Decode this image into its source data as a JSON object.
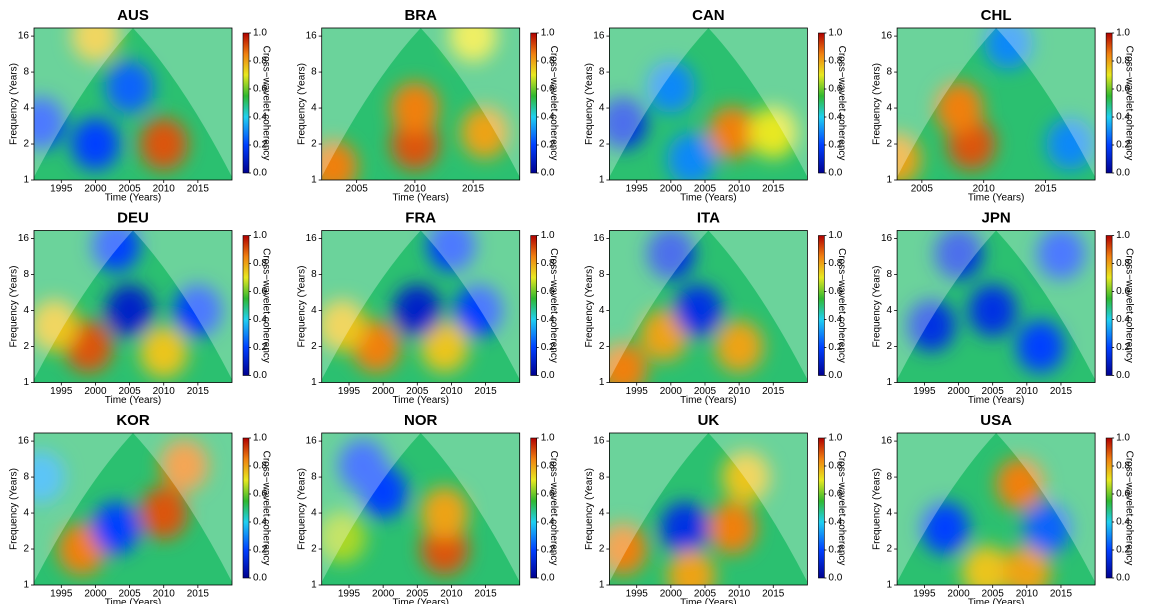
{
  "chart_data": [
    {
      "type": "wavelet",
      "title": "AUS",
      "xlabel": "Time (Years)",
      "ylabel": "Frequency (Years)",
      "colorbar_label": "Cross−wavelet coherency",
      "xlim": [
        1991,
        2020
      ],
      "xticks": [
        1995,
        2000,
        2005,
        2010,
        2015
      ],
      "ylim": [
        1,
        18.7
      ],
      "yticks": [
        1,
        2,
        4,
        8,
        16
      ],
      "log_scale": true,
      "clim": [
        0,
        1
      ],
      "cticks": [
        {
          "value": 0,
          "label": "0.0"
        },
        {
          "value": 0.2,
          "label": "0.2"
        },
        {
          "value": 0.4,
          "label": "0.4"
        },
        {
          "value": 0.6,
          "label": "0.6"
        },
        {
          "value": 0.8,
          "label": "0.8"
        },
        {
          "value": 1,
          "label": "1.0"
        }
      ],
      "regions": [
        {
          "x": 2010,
          "y": 2,
          "value": 0.9
        },
        {
          "x": 1992,
          "y": 3,
          "value": 0.2
        },
        {
          "x": 2000,
          "y": 2,
          "value": 0.2
        },
        {
          "x": 2000,
          "y": 16,
          "value": 0.75
        },
        {
          "x": 2005,
          "y": 6,
          "value": 0.25
        }
      ]
    },
    {
      "type": "wavelet",
      "title": "BRA",
      "xlabel": "Time (Years)",
      "ylabel": "Frequency (Years)",
      "colorbar_label": "Cross−wavelet coherency",
      "xlim": [
        2002,
        2019
      ],
      "xticks": [
        2005,
        2010,
        2015
      ],
      "ylim": [
        1,
        18.7
      ],
      "yticks": [
        1,
        2,
        4,
        8,
        16
      ],
      "log_scale": true,
      "clim": [
        0,
        1
      ],
      "cticks": [
        {
          "value": 0,
          "label": "0.0"
        },
        {
          "value": 0.2,
          "label": "0.2"
        },
        {
          "value": 0.4,
          "label": "0.4"
        },
        {
          "value": 0.6,
          "label": "0.6"
        },
        {
          "value": 0.8,
          "label": "0.8"
        },
        {
          "value": 1,
          "label": "1.0"
        }
      ],
      "regions": [
        {
          "x": 2010,
          "y": 2,
          "value": 0.9
        },
        {
          "x": 2010,
          "y": 4,
          "value": 0.85
        },
        {
          "x": 2016,
          "y": 2.5,
          "value": 0.8
        },
        {
          "x": 2003,
          "y": 1.3,
          "value": 0.85
        },
        {
          "x": 2015,
          "y": 16,
          "value": 0.7
        }
      ]
    },
    {
      "type": "wavelet",
      "title": "CAN",
      "xlabel": "Time (Years)",
      "ylabel": "Frequency (Years)",
      "colorbar_label": "Cross−wavelet coherency",
      "xlim": [
        1991,
        2020
      ],
      "xticks": [
        1995,
        2000,
        2005,
        2010,
        2015
      ],
      "ylim": [
        1,
        18.7
      ],
      "yticks": [
        1,
        2,
        4,
        8,
        16
      ],
      "log_scale": true,
      "clim": [
        0,
        1
      ],
      "cticks": [
        {
          "value": 0,
          "label": "0.0"
        },
        {
          "value": 0.2,
          "label": "0.2"
        },
        {
          "value": 0.4,
          "label": "0.4"
        },
        {
          "value": 0.6,
          "label": "0.6"
        },
        {
          "value": 0.8,
          "label": "0.8"
        },
        {
          "value": 1,
          "label": "1.0"
        }
      ],
      "regions": [
        {
          "x": 1993,
          "y": 3,
          "value": 0.15
        },
        {
          "x": 2009,
          "y": 2.5,
          "value": 0.85
        },
        {
          "x": 2015,
          "y": 2.5,
          "value": 0.7
        },
        {
          "x": 2000,
          "y": 6,
          "value": 0.3
        },
        {
          "x": 2003,
          "y": 1.5,
          "value": 0.3
        }
      ]
    },
    {
      "type": "wavelet",
      "title": "CHL",
      "xlabel": "Time (Years)",
      "ylabel": "Frequency (Years)",
      "colorbar_label": "Cross−wavelet coherency",
      "xlim": [
        2003,
        2019
      ],
      "xticks": [
        2005,
        2010,
        2015
      ],
      "ylim": [
        1,
        18.7
      ],
      "yticks": [
        1,
        2,
        4,
        8,
        16
      ],
      "log_scale": true,
      "clim": [
        0,
        1
      ],
      "cticks": [
        {
          "value": 0,
          "label": "0.0"
        },
        {
          "value": 0.2,
          "label": "0.2"
        },
        {
          "value": 0.4,
          "label": "0.4"
        },
        {
          "value": 0.6,
          "label": "0.6"
        },
        {
          "value": 0.8,
          "label": "0.8"
        },
        {
          "value": 1,
          "label": "1.0"
        }
      ],
      "regions": [
        {
          "x": 2009,
          "y": 2,
          "value": 0.9
        },
        {
          "x": 2008,
          "y": 4,
          "value": 0.85
        },
        {
          "x": 2017,
          "y": 2,
          "value": 0.3
        },
        {
          "x": 2003,
          "y": 1.5,
          "value": 0.8
        },
        {
          "x": 2012,
          "y": 14,
          "value": 0.3
        }
      ]
    },
    {
      "type": "wavelet",
      "title": "DEU",
      "xlabel": "Time (Years)",
      "ylabel": "Frequency (Years)",
      "colorbar_label": "Cross−wavelet coherency",
      "xlim": [
        1991,
        2020
      ],
      "xticks": [
        1995,
        2000,
        2005,
        2010,
        2015
      ],
      "ylim": [
        1,
        18.7
      ],
      "yticks": [
        1,
        2,
        4,
        8,
        16
      ],
      "log_scale": true,
      "clim": [
        0,
        1
      ],
      "cticks": [
        {
          "value": 0,
          "label": "0.0"
        },
        {
          "value": 0.2,
          "label": "0.2"
        },
        {
          "value": 0.4,
          "label": "0.4"
        },
        {
          "value": 0.6,
          "label": "0.6"
        },
        {
          "value": 0.8,
          "label": "0.8"
        },
        {
          "value": 1,
          "label": "1.0"
        }
      ],
      "regions": [
        {
          "x": 1999,
          "y": 2,
          "value": 0.9
        },
        {
          "x": 1994,
          "y": 3,
          "value": 0.75
        },
        {
          "x": 2010,
          "y": 1.8,
          "value": 0.75
        },
        {
          "x": 2005,
          "y": 4,
          "value": 0.1
        },
        {
          "x": 2015,
          "y": 4,
          "value": 0.2
        },
        {
          "x": 2003,
          "y": 14,
          "value": 0.2
        }
      ]
    },
    {
      "type": "wavelet",
      "title": "FRA",
      "xlabel": "Time (Years)",
      "ylabel": "Frequency (Years)",
      "colorbar_label": "Cross−wavelet coherency",
      "xlim": [
        1991,
        2020
      ],
      "xticks": [
        1995,
        2000,
        2005,
        2010,
        2015
      ],
      "ylim": [
        1,
        18.7
      ],
      "yticks": [
        1,
        2,
        4,
        8,
        16
      ],
      "log_scale": true,
      "clim": [
        0,
        1
      ],
      "cticks": [
        {
          "value": 0,
          "label": "0.0"
        },
        {
          "value": 0.2,
          "label": "0.2"
        },
        {
          "value": 0.4,
          "label": "0.4"
        },
        {
          "value": 0.6,
          "label": "0.6"
        },
        {
          "value": 0.8,
          "label": "0.8"
        },
        {
          "value": 1,
          "label": "1.0"
        }
      ],
      "regions": [
        {
          "x": 1999,
          "y": 2,
          "value": 0.85
        },
        {
          "x": 1994,
          "y": 3,
          "value": 0.75
        },
        {
          "x": 2009,
          "y": 2,
          "value": 0.75
        },
        {
          "x": 2005,
          "y": 4,
          "value": 0.1
        },
        {
          "x": 2014,
          "y": 4,
          "value": 0.2
        },
        {
          "x": 2010,
          "y": 14,
          "value": 0.2
        }
      ]
    },
    {
      "type": "wavelet",
      "title": "ITA",
      "xlabel": "Time (Years)",
      "ylabel": "Frequency (Years)",
      "colorbar_label": "Cross−wavelet coherency",
      "xlim": [
        1991,
        2020
      ],
      "xticks": [
        1995,
        2000,
        2005,
        2010,
        2015
      ],
      "ylim": [
        1,
        18.7
      ],
      "yticks": [
        1,
        2,
        4,
        8,
        16
      ],
      "log_scale": true,
      "clim": [
        0,
        1
      ],
      "cticks": [
        {
          "value": 0,
          "label": "0.0"
        },
        {
          "value": 0.2,
          "label": "0.2"
        },
        {
          "value": 0.4,
          "label": "0.4"
        },
        {
          "value": 0.6,
          "label": "0.6"
        },
        {
          "value": 0.8,
          "label": "0.8"
        },
        {
          "value": 1,
          "label": "1.0"
        }
      ],
      "regions": [
        {
          "x": 1999,
          "y": 2.5,
          "value": 0.8
        },
        {
          "x": 2010,
          "y": 2,
          "value": 0.8
        },
        {
          "x": 1993,
          "y": 1.3,
          "value": 0.85
        },
        {
          "x": 2004,
          "y": 4,
          "value": 0.15
        },
        {
          "x": 2000,
          "y": 12,
          "value": 0.15
        }
      ]
    },
    {
      "type": "wavelet",
      "title": "JPN",
      "xlabel": "Time (Years)",
      "ylabel": "Frequency (Years)",
      "colorbar_label": "Cross−wavelet coherency",
      "xlim": [
        1991,
        2020
      ],
      "xticks": [
        1995,
        2000,
        2005,
        2010,
        2015
      ],
      "ylim": [
        1,
        18.7
      ],
      "yticks": [
        1,
        2,
        4,
        8,
        16
      ],
      "log_scale": true,
      "clim": [
        0,
        1
      ],
      "cticks": [
        {
          "value": 0,
          "label": "0.0"
        },
        {
          "value": 0.2,
          "label": "0.2"
        },
        {
          "value": 0.4,
          "label": "0.4"
        },
        {
          "value": 0.6,
          "label": "0.6"
        },
        {
          "value": 0.8,
          "label": "0.8"
        },
        {
          "value": 1,
          "label": "1.0"
        }
      ],
      "regions": [
        {
          "x": 1996,
          "y": 3,
          "value": 0.15
        },
        {
          "x": 2005,
          "y": 4,
          "value": 0.15
        },
        {
          "x": 2012,
          "y": 2,
          "value": 0.2
        },
        {
          "x": 2000,
          "y": 12,
          "value": 0.15
        },
        {
          "x": 2015,
          "y": 12,
          "value": 0.2
        }
      ]
    },
    {
      "type": "wavelet",
      "title": "KOR",
      "xlabel": "Time (Years)",
      "ylabel": "Frequency (Years)",
      "colorbar_label": "Cross−wavelet coherency",
      "xlim": [
        1991,
        2020
      ],
      "xticks": [
        1995,
        2000,
        2005,
        2010,
        2015
      ],
      "ylim": [
        1,
        18.7
      ],
      "yticks": [
        1,
        2,
        4,
        8,
        16
      ],
      "log_scale": true,
      "clim": [
        0,
        1
      ],
      "cticks": [
        {
          "value": 0,
          "label": "0.0"
        },
        {
          "value": 0.2,
          "label": "0.2"
        },
        {
          "value": 0.4,
          "label": "0.4"
        },
        {
          "value": 0.6,
          "label": "0.6"
        },
        {
          "value": 0.8,
          "label": "0.8"
        },
        {
          "value": 1,
          "label": "1.0"
        }
      ],
      "regions": [
        {
          "x": 2010,
          "y": 4,
          "value": 0.9
        },
        {
          "x": 2013,
          "y": 10,
          "value": 0.85
        },
        {
          "x": 1998,
          "y": 2,
          "value": 0.85
        },
        {
          "x": 2003,
          "y": 3,
          "value": 0.2
        },
        {
          "x": 1992,
          "y": 8,
          "value": 0.35
        }
      ]
    },
    {
      "type": "wavelet",
      "title": "NOR",
      "xlabel": "Time (Years)",
      "ylabel": "Frequency (Years)",
      "colorbar_label": "Cross−wavelet coherency",
      "xlim": [
        1991,
        2020
      ],
      "xticks": [
        1995,
        2000,
        2005,
        2010,
        2015
      ],
      "ylim": [
        1,
        18.7
      ],
      "yticks": [
        1,
        2,
        4,
        8,
        16
      ],
      "log_scale": true,
      "clim": [
        0,
        1
      ],
      "cticks": [
        {
          "value": 0,
          "label": "0.0"
        },
        {
          "value": 0.2,
          "label": "0.2"
        },
        {
          "value": 0.4,
          "label": "0.4"
        },
        {
          "value": 0.6,
          "label": "0.6"
        },
        {
          "value": 0.8,
          "label": "0.8"
        },
        {
          "value": 1,
          "label": "1.0"
        }
      ],
      "regions": [
        {
          "x": 2009,
          "y": 2,
          "value": 0.9
        },
        {
          "x": 2009,
          "y": 4,
          "value": 0.8
        },
        {
          "x": 1994,
          "y": 2.5,
          "value": 0.65
        },
        {
          "x": 2000,
          "y": 6,
          "value": 0.2
        },
        {
          "x": 1997,
          "y": 10,
          "value": 0.2
        }
      ]
    },
    {
      "type": "wavelet",
      "title": "UK",
      "xlabel": "Time (Years)",
      "ylabel": "Frequency (Years)",
      "colorbar_label": "Cross−wavelet coherency",
      "xlim": [
        1991,
        2020
      ],
      "xticks": [
        1995,
        2000,
        2005,
        2010,
        2015
      ],
      "ylim": [
        1,
        18.7
      ],
      "yticks": [
        1,
        2,
        4,
        8,
        16
      ],
      "log_scale": true,
      "clim": [
        0,
        1
      ],
      "cticks": [
        {
          "value": 0,
          "label": "0.0"
        },
        {
          "value": 0.2,
          "label": "0.2"
        },
        {
          "value": 0.4,
          "label": "0.4"
        },
        {
          "value": 0.6,
          "label": "0.6"
        },
        {
          "value": 0.8,
          "label": "0.8"
        },
        {
          "value": 1,
          "label": "1.0"
        }
      ],
      "regions": [
        {
          "x": 2009,
          "y": 3,
          "value": 0.85
        },
        {
          "x": 2011,
          "y": 8,
          "value": 0.75
        },
        {
          "x": 1993,
          "y": 2,
          "value": 0.85
        },
        {
          "x": 2002,
          "y": 3,
          "value": 0.15
        },
        {
          "x": 2003,
          "y": 1.2,
          "value": 0.8
        }
      ]
    },
    {
      "type": "wavelet",
      "title": "USA",
      "xlabel": "Time (Years)",
      "ylabel": "Frequency (Years)",
      "colorbar_label": "Cross−wavelet coherency",
      "xlim": [
        1991,
        2020
      ],
      "xticks": [
        1995,
        2000,
        2005,
        2010,
        2015
      ],
      "ylim": [
        1,
        18.7
      ],
      "yticks": [
        1,
        2,
        4,
        8,
        16
      ],
      "log_scale": true,
      "clim": [
        0,
        1
      ],
      "cticks": [
        {
          "value": 0,
          "label": "0.0"
        },
        {
          "value": 0.2,
          "label": "0.2"
        },
        {
          "value": 0.4,
          "label": "0.4"
        },
        {
          "value": 0.6,
          "label": "0.6"
        },
        {
          "value": 0.8,
          "label": "0.8"
        },
        {
          "value": 1,
          "label": "1.0"
        }
      ],
      "regions": [
        {
          "x": 2009,
          "y": 7,
          "value": 0.85
        },
        {
          "x": 2004,
          "y": 1.3,
          "value": 0.75
        },
        {
          "x": 2010,
          "y": 1.3,
          "value": 0.8
        },
        {
          "x": 1998,
          "y": 3,
          "value": 0.2
        },
        {
          "x": 2013,
          "y": 3,
          "value": 0.25
        }
      ]
    }
  ]
}
